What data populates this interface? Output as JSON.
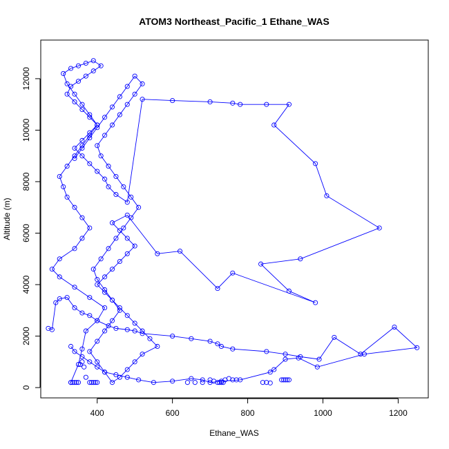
{
  "chart_data": {
    "type": "scatter",
    "title": "ATOM3 Northeast_Pacific_1 Ethane_WAS",
    "xlabel": "Ethane_WAS",
    "ylabel": "Altitude (m)",
    "xlim": [
      250,
      1280
    ],
    "ylim": [
      -400,
      13500
    ],
    "x_ticks": [
      400,
      600,
      800,
      1000,
      1200
    ],
    "y_ticks": [
      0,
      2000,
      4000,
      6000,
      8000,
      10000,
      12000
    ],
    "grid": false,
    "legend": "none",
    "color": "#0000ff",
    "series": [
      {
        "x": [
          330,
          350,
          360,
          370,
          400,
          420,
          380,
          340,
          300,
          280,
          300,
          340,
          360,
          380,
          360,
          340,
          320,
          310,
          300,
          320,
          340,
          360,
          380,
          400,
          380,
          360,
          340,
          320,
          310,
          330,
          350,
          370,
          390,
          410,
          390,
          370,
          350,
          330,
          320,
          340,
          360,
          380,
          400,
          380,
          360,
          340,
          360,
          380,
          400,
          420,
          430,
          450,
          480,
          520,
          600,
          700,
          760,
          780,
          850,
          910,
          870,
          980,
          1010,
          1150,
          940,
          835,
          910,
          980,
          760,
          720,
          620,
          560,
          480,
          440,
          460,
          480,
          500,
          480,
          460,
          440,
          420,
          400,
          420,
          440,
          460,
          480,
          500,
          520,
          540,
          560,
          520,
          500,
          480,
          460,
          440,
          420,
          400,
          380,
          400,
          420,
          440,
          460,
          440,
          420,
          400,
          390,
          410,
          430,
          450,
          470,
          490,
          510,
          490,
          470,
          450,
          430,
          410,
          400,
          420,
          440,
          460,
          480,
          500,
          520,
          500,
          480,
          460,
          440,
          420,
          400,
          380,
          360,
          340
        ],
        "y": [
          200,
          900,
          1500,
          2200,
          2600,
          3100,
          3500,
          3900,
          4300,
          4600,
          5000,
          5400,
          5800,
          6200,
          6600,
          7000,
          7400,
          7800,
          8200,
          8600,
          9000,
          9400,
          9800,
          10200,
          10600,
          11000,
          11400,
          11800,
          12200,
          12400,
          12500,
          12600,
          12700,
          12500,
          12300,
          12100,
          11900,
          11700,
          11400,
          11100,
          10800,
          10500,
          10200,
          9900,
          9600,
          9300,
          9000,
          8700,
          8400,
          8100,
          7800,
          7500,
          7200,
          11200,
          11150,
          11100,
          11050,
          11000,
          11000,
          11000,
          10200,
          8700,
          7450,
          6200,
          5000,
          4800,
          3750,
          3300,
          4450,
          3850,
          5300,
          5200,
          6700,
          6400,
          6100,
          5800,
          5500,
          5200,
          4900,
          4600,
          4300,
          4000,
          3700,
          3400,
          3100,
          2800,
          2500,
          2200,
          1900,
          1600,
          1300,
          1000,
          700,
          400,
          200,
          600,
          1000,
          1400,
          1800,
          2200,
          2600,
          3000,
          3400,
          3800,
          4200,
          4600,
          5000,
          5400,
          5800,
          6200,
          6600,
          7000,
          7400,
          7800,
          8200,
          8600,
          9000,
          9400,
          9800,
          10200,
          10600,
          11000,
          11400,
          11800,
          12100,
          11700,
          11300,
          10900,
          10500,
          10100,
          9700,
          9300,
          8900
        ],
        "connected": true
      },
      {
        "x": [
          270,
          280,
          290,
          300,
          320,
          340,
          360,
          380,
          400,
          430,
          450,
          480,
          500,
          520,
          600,
          650,
          700,
          720,
          730,
          760,
          850,
          900,
          940,
          990,
          1030,
          1100,
          1190,
          1250,
          1110,
          985,
          935,
          900,
          870,
          860,
          780,
          730,
          700,
          680,
          650,
          600,
          550,
          510,
          480,
          450,
          420,
          400,
          380,
          360,
          340,
          330
        ],
        "y": [
          2300,
          2250,
          3300,
          3450,
          3500,
          3100,
          2900,
          2800,
          2600,
          2400,
          2300,
          2250,
          2200,
          2100,
          2000,
          1900,
          1800,
          1700,
          1600,
          1500,
          1400,
          1300,
          1200,
          1100,
          1950,
          1300,
          2350,
          1550,
          1300,
          800,
          1150,
          1100,
          700,
          600,
          300,
          250,
          200,
          300,
          350,
          250,
          200,
          300,
          400,
          500,
          600,
          800,
          1000,
          1200,
          1400,
          1600
        ],
        "connected": true
      },
      {
        "x": [
          700,
          710,
          720,
          725,
          730,
          735,
          740,
          750,
          760,
          770,
          640,
          660,
          680,
          840,
          850,
          860,
          890,
          895,
          900,
          905,
          910,
          330,
          335,
          340,
          345,
          350,
          355,
          360,
          365,
          370,
          380,
          385,
          390,
          395,
          400
        ],
        "y": [
          300,
          250,
          200,
          200,
          200,
          200,
          300,
          350,
          300,
          300,
          200,
          200,
          200,
          200,
          200,
          180,
          300,
          300,
          300,
          300,
          300,
          200,
          200,
          200,
          200,
          200,
          900,
          1000,
          800,
          400,
          200,
          200,
          200,
          200,
          200
        ],
        "connected": false
      }
    ]
  }
}
